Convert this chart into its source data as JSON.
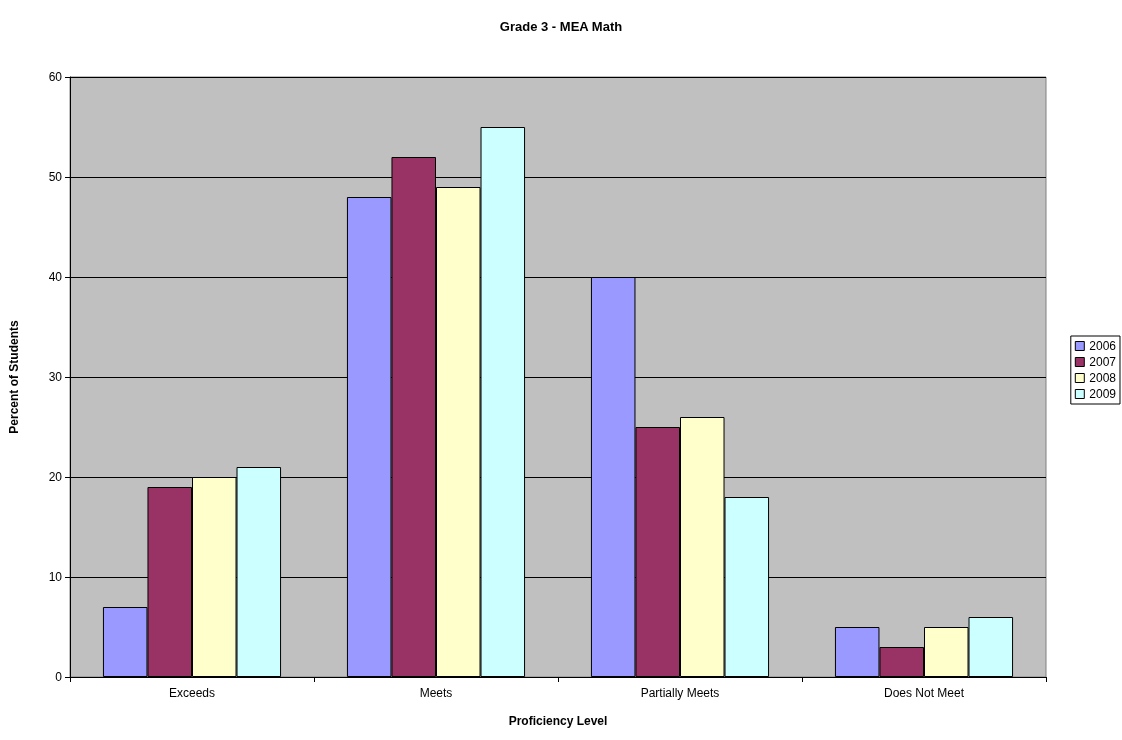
{
  "chart_data": {
    "type": "bar",
    "title": "Grade 3 - MEA Math",
    "xlabel": "Proficiency Level",
    "ylabel": "Percent of Students",
    "categories": [
      "Exceeds",
      "Meets",
      "Partially Meets",
      "Does Not Meet"
    ],
    "series": [
      {
        "name": "2006",
        "color": "#9999ff",
        "values": [
          7,
          48,
          40,
          5
        ]
      },
      {
        "name": "2007",
        "color": "#993366",
        "values": [
          19,
          52,
          25,
          3
        ]
      },
      {
        "name": "2008",
        "color": "#ffffcc",
        "values": [
          20,
          49,
          26,
          5
        ]
      },
      {
        "name": "2009",
        "color": "#ccffff",
        "values": [
          21,
          55,
          18,
          6
        ]
      }
    ],
    "ylim": [
      0,
      60
    ],
    "yticks": [
      0,
      10,
      20,
      30,
      40,
      50,
      60
    ],
    "grid": "y",
    "legend": "right"
  }
}
